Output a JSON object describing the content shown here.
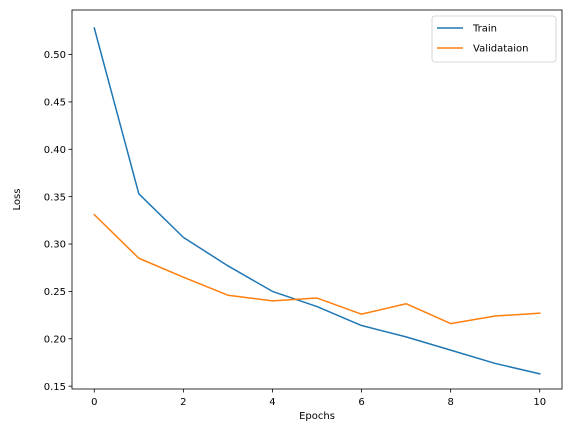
{
  "chart_data": {
    "type": "line",
    "title": "",
    "xlabel": "Epochs",
    "ylabel": "Loss",
    "x": [
      0,
      1,
      2,
      3,
      4,
      5,
      6,
      7,
      8,
      9,
      10
    ],
    "xlim": [
      -0.5,
      10.5
    ],
    "ylim": [
      0.147,
      0.547
    ],
    "xticks": [
      0,
      2,
      4,
      6,
      8,
      10
    ],
    "yticks": [
      0.15,
      0.2,
      0.25,
      0.3,
      0.35,
      0.4,
      0.45,
      0.5
    ],
    "ytick_labels": [
      "0.15",
      "0.20",
      "0.25",
      "0.30",
      "0.35",
      "0.40",
      "0.45",
      "0.50"
    ],
    "grid": false,
    "legend_position": "top-right",
    "series": [
      {
        "name": "Train",
        "color": "#1f77b4",
        "values": [
          0.528,
          0.353,
          0.307,
          0.277,
          0.25,
          0.234,
          0.214,
          0.202,
          0.188,
          0.174,
          0.163
        ]
      },
      {
        "name": "Validataion",
        "color": "#ff7f0e",
        "values": [
          0.331,
          0.285,
          0.265,
          0.246,
          0.24,
          0.243,
          0.226,
          0.237,
          0.216,
          0.224,
          0.227
        ]
      }
    ]
  }
}
